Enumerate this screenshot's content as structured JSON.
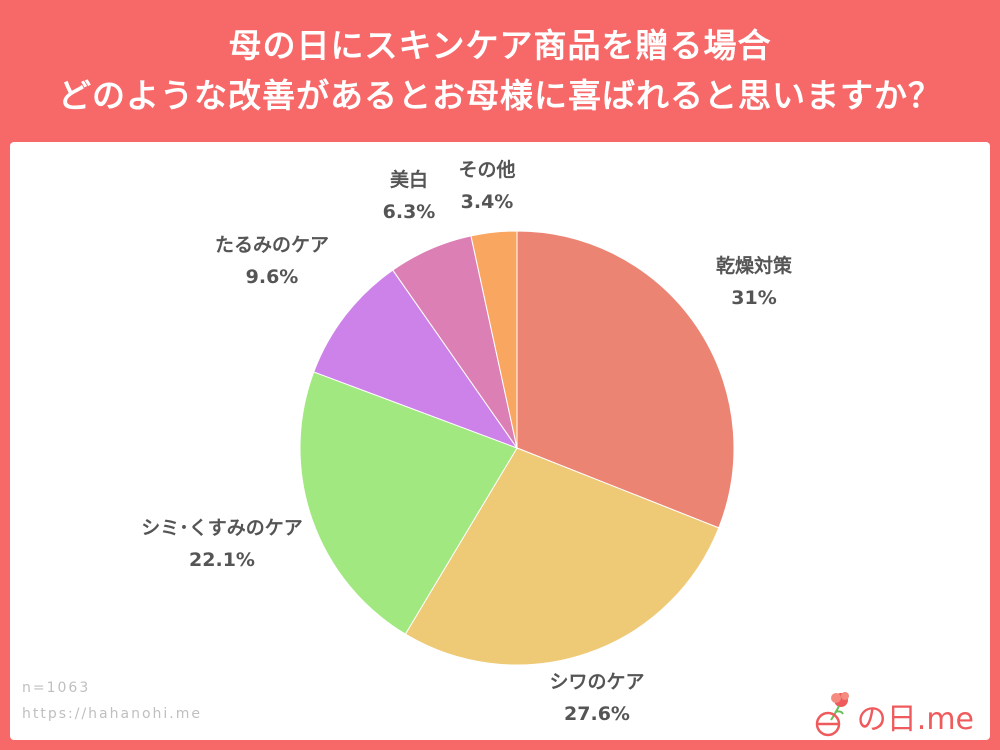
{
  "header": {
    "title_line1": "母の日にスキンケア商品を贈る場合",
    "title_line2": "どのような改善があるとお母様に喜ばれると思いますか？"
  },
  "footer": {
    "sample_size": "n=1063",
    "url": "https://hahanohi.me",
    "logo_text": "の日.me"
  },
  "colors": {
    "background": "#f76869",
    "label": "#555555"
  },
  "chart_data": {
    "type": "pie",
    "title": "母の日にスキンケア商品を贈る場合 どのような改善があるとお母様に喜ばれると思いますか？",
    "start": "12 o'clock, clockwise",
    "slices": [
      {
        "label": "乾燥対策",
        "value": 31,
        "display": "31%",
        "color": "#ec8474"
      },
      {
        "label": "シワのケア",
        "value": 27.6,
        "display": "27.6%",
        "color": "#eec976"
      },
      {
        "label": "シミ･くすみのケア",
        "value": 22.1,
        "display": "22.1%",
        "color": "#a0e87f"
      },
      {
        "label": "たるみのケア",
        "value": 9.6,
        "display": "9.6%",
        "color": "#cd82e9"
      },
      {
        "label": "美白",
        "value": 6.3,
        "display": "6.3%",
        "color": "#db7fb4"
      },
      {
        "label": "その他",
        "value": 3.4,
        "display": "3.4%",
        "color": "#f9a660"
      }
    ]
  }
}
